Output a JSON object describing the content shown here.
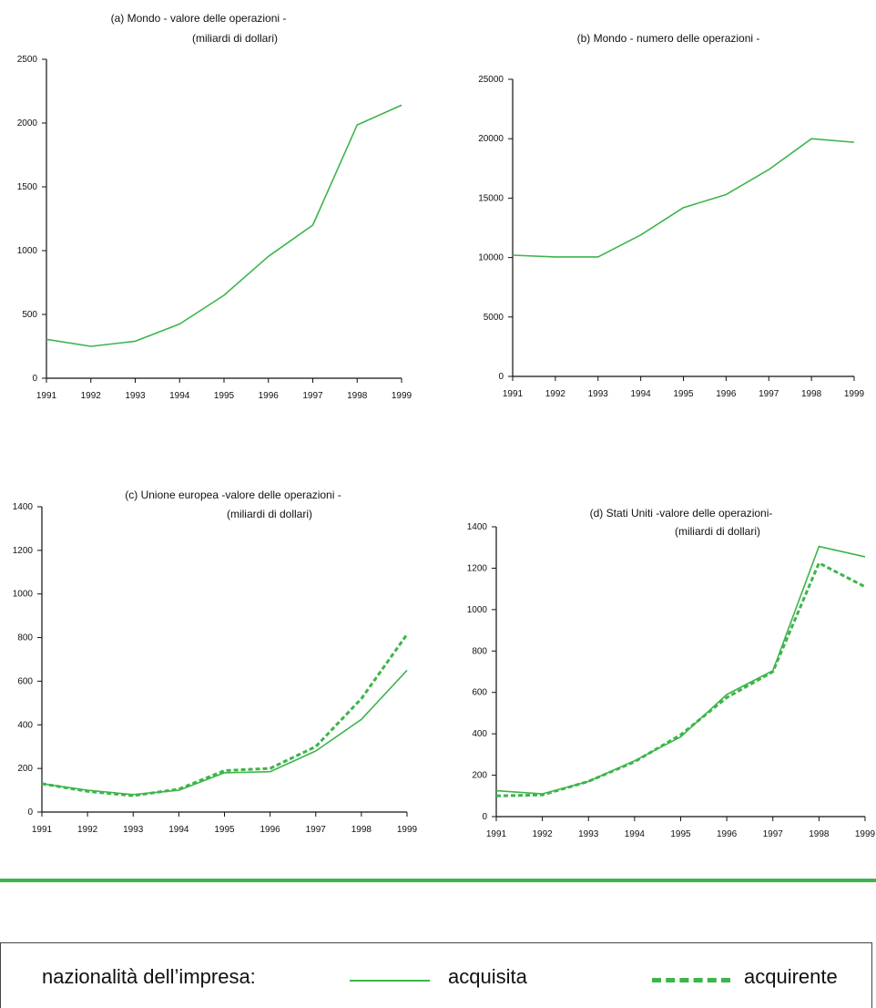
{
  "colors": {
    "accent": "#3cb54a"
  },
  "chart_data": [
    {
      "type": "line",
      "title": "(a) Mondo - valore delle operazioni -",
      "subtitle": "(miliardi di dollari)",
      "x": [
        "1991",
        "1992",
        "1993",
        "1994",
        "1995",
        "1996",
        "1997",
        "1998",
        "1999"
      ],
      "ylim": [
        0,
        2500
      ],
      "yticks": [
        "0",
        "500",
        "1000",
        "1500",
        "2000",
        "2500"
      ],
      "series": [
        {
          "name": "acquisita",
          "values": [
            305,
            250,
            290,
            425,
            650,
            955,
            1200,
            1985,
            2140
          ]
        }
      ]
    },
    {
      "type": "line",
      "title": "(b) Mondo - numero delle operazioni -",
      "subtitle": "",
      "x": [
        "1991",
        "1992",
        "1993",
        "1994",
        "1995",
        "1996",
        "1997",
        "1998",
        "1999"
      ],
      "ylim": [
        0,
        25000
      ],
      "yticks": [
        "0",
        "5000",
        "10000",
        "15000",
        "20000",
        "25000"
      ],
      "series": [
        {
          "name": "acquisita",
          "values": [
            10200,
            10050,
            10050,
            11900,
            14200,
            15300,
            17400,
            20000,
            19700
          ]
        }
      ]
    },
    {
      "type": "line",
      "title": "(c) Unione europea -valore delle operazioni -",
      "subtitle": "(miliardi di dollari)",
      "x": [
        "1991",
        "1992",
        "1993",
        "1994",
        "1995",
        "1996",
        "1997",
        "1998",
        "1999"
      ],
      "ylim": [
        0,
        1400
      ],
      "yticks": [
        "0",
        "200",
        "400",
        "600",
        "800",
        "1000",
        "1200",
        "1400"
      ],
      "series": [
        {
          "name": "acquisita",
          "values": [
            130,
            100,
            80,
            100,
            180,
            185,
            280,
            425,
            650
          ]
        },
        {
          "name": "acquirente",
          "values": [
            130,
            95,
            75,
            105,
            190,
            200,
            300,
            520,
            815
          ]
        }
      ]
    },
    {
      "type": "line",
      "title": "(d) Stati Uniti -valore delle operazioni-",
      "subtitle": "(miliardi di dollari)",
      "x": [
        "1991",
        "1992",
        "1993",
        "1994",
        "1995",
        "1996",
        "1997",
        "1998",
        "1999"
      ],
      "ylim": [
        0,
        1400
      ],
      "yticks": [
        "0",
        "200",
        "400",
        "600",
        "800",
        "1000",
        "1200",
        "1400"
      ],
      "series": [
        {
          "name": "acquisita",
          "values": [
            125,
            110,
            170,
            270,
            385,
            590,
            705,
            1305,
            1255
          ]
        },
        {
          "name": "acquirente",
          "values": [
            100,
            105,
            170,
            265,
            395,
            575,
            700,
            1225,
            1110
          ]
        }
      ]
    }
  ],
  "legend": {
    "title": "nazionalità dell’impresa:",
    "items": [
      "acquisita",
      "acquirente"
    ]
  }
}
